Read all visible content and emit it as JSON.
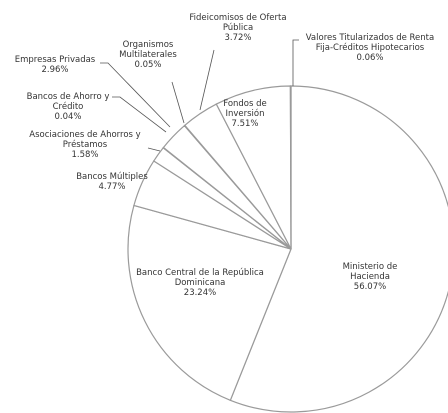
{
  "chart_data": {
    "type": "pie",
    "categories": [
      "Ministerio de Hacienda",
      "Banco Central de la República Dominicana",
      "Bancos Múltiples",
      "Asociaciones de Ahorros y Préstamos",
      "Bancos de Ahorro y Crédito",
      "Empresas Privadas",
      "Organismos Multilaterales",
      "Fideicomisos de Oferta Pública",
      "Fondos de Inversión",
      "Valores Titularizados de Renta Fija-Créditos Hipotecarios"
    ],
    "values": [
      56.07,
      23.24,
      4.77,
      1.58,
      0.04,
      2.96,
      0.05,
      3.72,
      7.51,
      0.06
    ],
    "value_labels": [
      "56.07%",
      "23.24%",
      "4.77%",
      "1.58%",
      "0.04%",
      "2.96%",
      "0.05%",
      "3.72%",
      "7.51%",
      "0.06%"
    ],
    "color": "#ffffff"
  }
}
